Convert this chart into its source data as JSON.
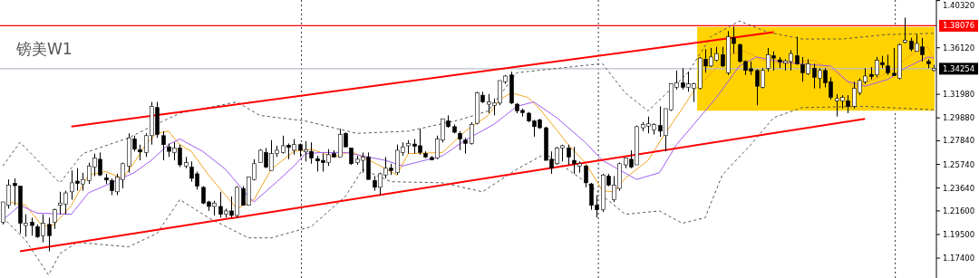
{
  "chart_data": {
    "type": "candlestick",
    "title": "镑美W1",
    "tick_labels": "y",
    "categories": [
      null,
      null,
      null,
      null,
      null,
      null,
      null,
      null,
      null,
      null,
      null,
      null,
      null,
      null,
      null,
      null,
      null,
      null,
      null,
      null,
      null,
      null,
      null,
      null,
      null,
      null,
      null,
      null,
      null,
      null,
      null,
      null,
      null,
      null,
      null,
      null,
      null,
      null,
      null,
      null,
      null,
      null,
      null,
      null,
      null,
      null,
      null,
      null,
      null,
      null,
      null,
      null,
      null,
      null,
      null,
      null,
      null,
      null,
      null,
      null,
      null,
      null,
      null,
      null,
      null,
      null,
      null,
      null,
      null,
      null,
      null,
      null,
      null,
      null,
      null,
      null,
      null,
      null,
      null,
      null,
      null,
      null,
      null,
      null,
      null,
      null,
      null,
      null,
      null,
      null,
      null,
      null,
      null,
      null,
      null,
      null,
      null,
      null,
      null,
      null,
      null,
      null,
      null,
      null,
      null,
      null,
      null,
      null,
      null,
      null,
      null,
      null,
      null,
      null,
      null,
      null,
      null,
      null,
      null,
      null,
      null,
      null,
      null,
      null,
      null,
      null,
      null,
      null,
      null,
      null,
      null,
      null,
      null,
      null,
      null,
      null,
      null,
      null,
      null,
      null,
      null,
      null,
      null,
      null,
      null,
      null,
      null,
      null,
      null,
      null,
      null,
      null,
      null,
      null,
      null,
      null,
      null,
      null,
      null,
      null,
      null,
      null,
      null,
      null
    ],
    "ohlc": [
      [
        1.206,
        1.224,
        1.204,
        1.224
      ],
      [
        1.221,
        1.244,
        1.218,
        1.239
      ],
      [
        1.24,
        1.245,
        1.221,
        1.239
      ],
      [
        1.238,
        1.238,
        1.196,
        1.205
      ],
      [
        1.203,
        1.213,
        1.193,
        1.205
      ],
      [
        1.206,
        1.21,
        1.194,
        1.203
      ],
      [
        1.202,
        1.204,
        1.192,
        1.193
      ],
      [
        1.194,
        1.213,
        1.188,
        1.205
      ],
      [
        1.204,
        1.21,
        1.18,
        1.194
      ],
      [
        1.206,
        1.218,
        1.2,
        1.217
      ],
      [
        1.221,
        1.233,
        1.213,
        1.223
      ],
      [
        1.222,
        1.234,
        1.213,
        1.232
      ],
      [
        1.233,
        1.252,
        1.226,
        1.241
      ],
      [
        1.242,
        1.254,
        1.234,
        1.241
      ],
      [
        1.24,
        1.25,
        1.234,
        1.244
      ],
      [
        1.243,
        1.259,
        1.24,
        1.256
      ],
      [
        1.255,
        1.267,
        1.247,
        1.263
      ],
      [
        1.262,
        1.268,
        1.247,
        1.248
      ],
      [
        1.245,
        1.249,
        1.24,
        1.244
      ],
      [
        1.243,
        1.245,
        1.23,
        1.234
      ],
      [
        1.233,
        1.249,
        1.23,
        1.246
      ],
      [
        1.244,
        1.259,
        1.236,
        1.258
      ],
      [
        1.256,
        1.285,
        1.25,
        1.281
      ],
      [
        1.28,
        1.283,
        1.269,
        1.271
      ],
      [
        1.27,
        1.275,
        1.261,
        1.269
      ],
      [
        1.268,
        1.285,
        1.264,
        1.283
      ],
      [
        1.283,
        1.313,
        1.275,
        1.309
      ],
      [
        1.308,
        1.313,
        1.281,
        1.284
      ],
      [
        1.283,
        1.287,
        1.261,
        1.275
      ],
      [
        1.273,
        1.276,
        1.264,
        1.269
      ],
      [
        1.268,
        1.277,
        1.261,
        1.272
      ],
      [
        1.272,
        1.275,
        1.255,
        1.257
      ],
      [
        1.256,
        1.264,
        1.254,
        1.259
      ],
      [
        1.255,
        1.26,
        1.242,
        1.245
      ],
      [
        1.249,
        1.251,
        1.235,
        1.238
      ],
      [
        1.237,
        1.238,
        1.222,
        1.223
      ],
      [
        1.224,
        1.225,
        1.216,
        1.22
      ],
      [
        1.22,
        1.225,
        1.212,
        1.223
      ],
      [
        1.22,
        1.233,
        1.21,
        1.213
      ],
      [
        1.213,
        1.218,
        1.21,
        1.216
      ],
      [
        1.216,
        1.229,
        1.21,
        1.212
      ],
      [
        1.212,
        1.238,
        1.21,
        1.237
      ],
      [
        1.236,
        1.238,
        1.221,
        1.221
      ],
      [
        1.221,
        1.246,
        1.221,
        1.246
      ],
      [
        1.244,
        1.262,
        1.243,
        1.258
      ],
      [
        1.259,
        1.271,
        1.259,
        1.27
      ],
      [
        1.268,
        1.272,
        1.254,
        1.255
      ],
      [
        1.252,
        1.279,
        1.252,
        1.267
      ],
      [
        1.267,
        1.274,
        1.264,
        1.27
      ],
      [
        1.268,
        1.283,
        1.267,
        1.274
      ],
      [
        1.274,
        1.276,
        1.262,
        1.273
      ],
      [
        1.27,
        1.28,
        1.266,
        1.275
      ],
      [
        1.275,
        1.276,
        1.264,
        1.27
      ],
      [
        1.269,
        1.278,
        1.26,
        1.27
      ],
      [
        1.269,
        1.277,
        1.258,
        1.263
      ],
      [
        1.262,
        1.265,
        1.251,
        1.261
      ],
      [
        1.261,
        1.267,
        1.251,
        1.259
      ],
      [
        1.259,
        1.271,
        1.256,
        1.266
      ],
      [
        1.267,
        1.27,
        1.264,
        1.264
      ],
      [
        1.264,
        1.289,
        1.264,
        1.284
      ],
      [
        1.285,
        1.286,
        1.273,
        1.273
      ],
      [
        1.272,
        1.272,
        1.257,
        1.258
      ],
      [
        1.259,
        1.265,
        1.257,
        1.262
      ],
      [
        1.261,
        1.268,
        1.25,
        1.264
      ],
      [
        1.264,
        1.268,
        1.244,
        1.244
      ],
      [
        1.243,
        1.247,
        1.234,
        1.237
      ],
      [
        1.237,
        1.25,
        1.23,
        1.249
      ],
      [
        1.248,
        1.264,
        1.245,
        1.254
      ],
      [
        1.254,
        1.258,
        1.248,
        1.252
      ],
      [
        1.25,
        1.275,
        1.248,
        1.27
      ],
      [
        1.268,
        1.277,
        1.265,
        1.273
      ],
      [
        1.274,
        1.279,
        1.267,
        1.276
      ],
      [
        1.275,
        1.28,
        1.267,
        1.274
      ],
      [
        1.274,
        1.289,
        1.266,
        1.268
      ],
      [
        1.267,
        1.269,
        1.263,
        1.264
      ],
      [
        1.263,
        1.265,
        1.261,
        1.262
      ],
      [
        1.263,
        1.283,
        1.262,
        1.28
      ],
      [
        1.279,
        1.298,
        1.277,
        1.298
      ],
      [
        1.296,
        1.301,
        1.29,
        1.291
      ],
      [
        1.291,
        1.293,
        1.285,
        1.286
      ],
      [
        1.285,
        1.287,
        1.27,
        1.28
      ],
      [
        1.279,
        1.281,
        1.267,
        1.276
      ],
      [
        1.276,
        1.295,
        1.275,
        1.293
      ],
      [
        1.294,
        1.322,
        1.293,
        1.321
      ],
      [
        1.319,
        1.322,
        1.312,
        1.313
      ],
      [
        1.312,
        1.32,
        1.303,
        1.312
      ],
      [
        1.311,
        1.316,
        1.301,
        1.311
      ],
      [
        1.312,
        1.332,
        1.31,
        1.332
      ],
      [
        1.331,
        1.337,
        1.329,
        1.336
      ],
      [
        1.337,
        1.34,
        1.311,
        1.312
      ],
      [
        1.311,
        1.312,
        1.303,
        1.305
      ],
      [
        1.305,
        1.307,
        1.3,
        1.304
      ],
      [
        1.303,
        1.304,
        1.295,
        1.296
      ],
      [
        1.296,
        1.297,
        1.282,
        1.291
      ],
      [
        1.297,
        1.298,
        1.289,
        1.29
      ],
      [
        1.29,
        1.291,
        1.261,
        1.261
      ],
      [
        1.262,
        1.269,
        1.249,
        1.254
      ],
      [
        1.258,
        1.273,
        1.257,
        1.272
      ],
      [
        1.272,
        1.275,
        1.26,
        1.274
      ],
      [
        1.272,
        1.275,
        1.257,
        1.264
      ],
      [
        1.261,
        1.273,
        1.249,
        1.258
      ],
      [
        1.256,
        1.26,
        1.25,
        1.258
      ],
      [
        1.256,
        1.257,
        1.237,
        1.241
      ],
      [
        1.24,
        1.241,
        1.217,
        1.221
      ],
      [
        1.221,
        1.23,
        1.21,
        1.217
      ],
      [
        1.217,
        1.249,
        1.215,
        1.248
      ],
      [
        1.247,
        1.249,
        1.238,
        1.239
      ],
      [
        1.226,
        1.247,
        1.224,
        1.239
      ],
      [
        1.236,
        1.259,
        1.234,
        1.258
      ],
      [
        1.257,
        1.263,
        1.254,
        1.263
      ],
      [
        1.262,
        1.27,
        1.254,
        1.255
      ],
      [
        1.257,
        1.292,
        1.257,
        1.291
      ],
      [
        1.29,
        1.295,
        1.287,
        1.293
      ],
      [
        1.292,
        1.3,
        1.285,
        1.293
      ],
      [
        1.288,
        1.294,
        1.284,
        1.293
      ],
      [
        1.292,
        1.309,
        1.282,
        1.287
      ],
      [
        1.283,
        1.307,
        1.269,
        1.307
      ],
      [
        1.306,
        1.329,
        1.305,
        1.329
      ],
      [
        1.326,
        1.341,
        1.324,
        1.33
      ],
      [
        1.33,
        1.343,
        1.324,
        1.326
      ],
      [
        1.326,
        1.34,
        1.322,
        1.329
      ],
      [
        1.325,
        1.33,
        1.313,
        1.329
      ],
      [
        1.325,
        1.353,
        1.324,
        1.352
      ],
      [
        1.351,
        1.36,
        1.339,
        1.345
      ],
      [
        1.345,
        1.361,
        1.344,
        1.353
      ],
      [
        1.35,
        1.362,
        1.349,
        1.356
      ],
      [
        1.355,
        1.362,
        1.344,
        1.345
      ],
      [
        1.339,
        1.376,
        1.337,
        1.371
      ],
      [
        1.37,
        1.38,
        1.356,
        1.365
      ],
      [
        1.364,
        1.365,
        1.348,
        1.349
      ],
      [
        1.349,
        1.35,
        1.337,
        1.341
      ],
      [
        1.342,
        1.349,
        1.337,
        1.341
      ],
      [
        1.341,
        1.342,
        1.31,
        1.327
      ],
      [
        1.326,
        1.343,
        1.325,
        1.341
      ],
      [
        1.343,
        1.361,
        1.34,
        1.355
      ],
      [
        1.354,
        1.358,
        1.341,
        1.352
      ],
      [
        1.35,
        1.353,
        1.343,
        1.349
      ],
      [
        1.348,
        1.351,
        1.341,
        1.349
      ],
      [
        1.349,
        1.359,
        1.341,
        1.356
      ],
      [
        1.354,
        1.371,
        1.346,
        1.347
      ],
      [
        1.346,
        1.353,
        1.331,
        1.339
      ],
      [
        1.338,
        1.351,
        1.337,
        1.347
      ],
      [
        1.343,
        1.347,
        1.325,
        1.335
      ],
      [
        1.334,
        1.343,
        1.325,
        1.341
      ],
      [
        1.341,
        1.343,
        1.326,
        1.33
      ],
      [
        1.331,
        1.335,
        1.315,
        1.317
      ],
      [
        1.314,
        1.32,
        1.3,
        1.316
      ],
      [
        1.314,
        1.319,
        1.307,
        1.317
      ],
      [
        1.314,
        1.319,
        1.303,
        1.309
      ],
      [
        1.309,
        1.331,
        1.307,
        1.325
      ],
      [
        1.321,
        1.334,
        1.319,
        1.332
      ],
      [
        1.331,
        1.343,
        1.329,
        1.336
      ],
      [
        1.337,
        1.344,
        1.333,
        1.336
      ],
      [
        1.337,
        1.353,
        1.335,
        1.35
      ],
      [
        1.348,
        1.354,
        1.343,
        1.346
      ],
      [
        1.345,
        1.355,
        1.337,
        1.339
      ],
      [
        1.338,
        1.361,
        1.336,
        1.337
      ],
      [
        1.334,
        1.365,
        1.333,
        1.364
      ],
      [
        1.366,
        1.388,
        1.365,
        1.368
      ],
      [
        1.367,
        1.37,
        1.358,
        1.36
      ],
      [
        1.358,
        1.373,
        1.358,
        1.365
      ],
      [
        1.362,
        1.37,
        1.349,
        1.355
      ],
      [
        1.349,
        1.351,
        1.343,
        1.347
      ],
      [
        1.341,
        1.346,
        1.34,
        1.343
      ]
    ],
    "series": [
      {
        "type": "line",
        "color": "#555555",
        "line_style": "dashed",
        "values": [
          1.256,
          null,
          null,
          1.277,
          null,
          null,
          null,
          null,
          null,
          null,
          1.241,
          null,
          null,
          null,
          1.267,
          null,
          null,
          null,
          null,
          null,
          null,
          null,
          1.281,
          null,
          null,
          null,
          1.291,
          null,
          null,
          null,
          null,
          1.303,
          null,
          null,
          null,
          null,
          null,
          null,
          null,
          null,
          null,
          1.313,
          null,
          null,
          null,
          1.301,
          null,
          null,
          null,
          null,
          null,
          null,
          null,
          1.296,
          null,
          null,
          null,
          null,
          null,
          null,
          null,
          null,
          1.285,
          null,
          null,
          null,
          null,
          null,
          null,
          null,
          null,
          1.287,
          null,
          null,
          null,
          null,
          null,
          null,
          null,
          null,
          1.297,
          null,
          null,
          null,
          null,
          1.305,
          null,
          null,
          null,
          null,
          1.339,
          null,
          null,
          null,
          null,
          null,
          null,
          null,
          null,
          null,
          null,
          1.345,
          null,
          null,
          null,
          1.347,
          null,
          null,
          null,
          1.321,
          null,
          null,
          null,
          1.305,
          null,
          null,
          null,
          null,
          null,
          null,
          1.339,
          null,
          null,
          null,
          1.371,
          null,
          null,
          null,
          null,
          1.385,
          null,
          null,
          null,
          null,
          1.375,
          null,
          null,
          null,
          null,
          null,
          1.369,
          null,
          null,
          null,
          null,
          null,
          null,
          1.369,
          null,
          null,
          null,
          null,
          null,
          null,
          null,
          1.373,
          null,
          null,
          null,
          null,
          null,
          null,
          null,
          1.374
        ]
      },
      {
        "type": "line",
        "color": "#555555",
        "line_style": "dashed",
        "values": [
          1.21,
          null,
          null,
          null,
          1.19,
          null,
          null,
          null,
          1.159,
          null,
          1.178,
          null,
          null,
          1.188,
          null,
          null,
          null,
          null,
          null,
          null,
          null,
          null,
          1.184,
          null,
          null,
          null,
          null,
          1.196,
          null,
          null,
          null,
          1.226,
          null,
          null,
          null,
          null,
          1.21,
          null,
          null,
          null,
          null,
          null,
          null,
          1.192,
          null,
          null,
          null,
          1.192,
          null,
          null,
          null,
          null,
          null,
          null,
          1.202,
          null,
          null,
          null,
          null,
          null,
          1.229,
          null,
          null,
          1.253,
          null,
          null,
          null,
          null,
          1.242,
          null,
          null,
          null,
          null,
          null,
          null,
          null,
          null,
          1.241,
          null,
          null,
          null,
          null,
          null,
          null,
          1.233,
          null,
          null,
          null,
          null,
          null,
          1.253,
          null,
          null,
          null,
          null,
          1.267,
          null,
          null,
          null,
          null,
          null,
          null,
          1.242,
          null,
          null,
          null,
          null,
          null,
          null,
          1.213,
          null,
          null,
          null,
          null,
          null,
          1.216,
          null,
          null,
          null,
          1.205,
          null,
          null,
          null,
          1.21,
          null,
          null,
          1.248,
          null,
          null,
          null,
          null,
          1.275,
          null,
          null,
          null,
          1.299,
          null,
          null,
          null,
          null,
          1.308,
          null,
          null,
          null,
          null,
          null,
          null,
          null,
          null,
          null,
          null,
          1.309,
          null,
          null,
          null,
          null,
          null,
          null,
          null,
          null,
          null,
          null,
          null,
          1.306
        ]
      },
      {
        "type": "line",
        "color": "#f5a623",
        "values": [
          null,
          1.224,
          null,
          null,
          1.221,
          null,
          null,
          1.202,
          null,
          1.204,
          null,
          null,
          1.221,
          null,
          null,
          1.248,
          null,
          null,
          1.251,
          null,
          null,
          1.245,
          null,
          1.259,
          null,
          1.275,
          null,
          1.285,
          null,
          1.287,
          null,
          1.275,
          null,
          1.269,
          null,
          null,
          1.248,
          null,
          null,
          null,
          null,
          1.218,
          null,
          null,
          1.226,
          null,
          null,
          1.253,
          null,
          null,
          null,
          1.269,
          null,
          null,
          1.271,
          null,
          null,
          null,
          1.264,
          null,
          null,
          1.269,
          null,
          null,
          null,
          1.259,
          null,
          null,
          null,
          1.248,
          null,
          1.267,
          null,
          null,
          null,
          null,
          null,
          1.268,
          null,
          null,
          null,
          1.287,
          null,
          null,
          null,
          1.301,
          null,
          1.315,
          null,
          1.321,
          null,
          null,
          1.317,
          null,
          1.307,
          null,
          null,
          1.288,
          null,
          1.275,
          null,
          null,
          1.259,
          null,
          null,
          1.234,
          null,
          1.233,
          null,
          1.245,
          null,
          null,
          null,
          1.261,
          null,
          null,
          1.285,
          null,
          null,
          1.307,
          null,
          1.323,
          null,
          null,
          1.338,
          null,
          null,
          1.355,
          null,
          null,
          1.358,
          null,
          null,
          1.35,
          null,
          null,
          1.347,
          null,
          null,
          null,
          null,
          null,
          1.35,
          null,
          null,
          null,
          1.339,
          null,
          null,
          1.326,
          null,
          null,
          null,
          1.334,
          null,
          null,
          1.342,
          null,
          null,
          1.355,
          null,
          null,
          1.362,
          1.351
        ]
      },
      {
        "type": "line",
        "color": "#a05cf0",
        "values": [
          1.208,
          null,
          null,
          1.221,
          null,
          null,
          1.214,
          null,
          null,
          null,
          null,
          null,
          1.213,
          null,
          null,
          1.232,
          null,
          null,
          null,
          1.241,
          null,
          null,
          null,
          1.25,
          null,
          null,
          1.261,
          null,
          null,
          1.275,
          null,
          1.28,
          null,
          null,
          null,
          1.269,
          null,
          null,
          null,
          1.253,
          null,
          null,
          null,
          1.229,
          1.224,
          null,
          null,
          null,
          1.242,
          null,
          null,
          1.256,
          null,
          1.267,
          null,
          null,
          1.268,
          null,
          null,
          null,
          1.268,
          null,
          null,
          null,
          null,
          null,
          null,
          1.261,
          null,
          null,
          1.256,
          null,
          null,
          null,
          null,
          null,
          null,
          1.265,
          null,
          null,
          null,
          1.279,
          null,
          null,
          null,
          null,
          1.293,
          null,
          null,
          null,
          1.309,
          null,
          null,
          1.313,
          null,
          null,
          null,
          1.299,
          null,
          null,
          null,
          null,
          1.277,
          null,
          null,
          1.261,
          null,
          null,
          null,
          null,
          null,
          1.244,
          null,
          null,
          null,
          1.25,
          null,
          null,
          1.275,
          null,
          null,
          null,
          1.299,
          null,
          null,
          1.317,
          null,
          null,
          null,
          1.345,
          null,
          null,
          1.353,
          null,
          null,
          null,
          1.349,
          null,
          null,
          1.347,
          null,
          null,
          null,
          null,
          null,
          1.345,
          null,
          null,
          1.331,
          null,
          null,
          1.327,
          null,
          null,
          null,
          1.333,
          null,
          null,
          1.343,
          null,
          null,
          null,
          1.353,
          1.352
        ]
      },
      {
        "type": "line",
        "color": "#ff0000",
        "values": [
          null,
          null,
          null,
          null,
          null,
          null,
          null,
          null,
          null,
          null,
          null,
          null,
          1.291,
          null,
          null,
          null,
          null,
          null,
          null,
          null,
          null,
          null,
          null,
          null,
          null,
          null,
          null,
          null,
          null,
          null,
          null,
          null,
          null,
          null,
          null,
          null,
          null,
          null,
          null,
          null,
          null,
          null,
          null,
          null,
          null,
          null,
          null,
          null,
          null,
          null,
          null,
          null,
          null,
          null,
          null,
          null,
          null,
          null,
          null,
          null,
          null,
          null,
          null,
          null,
          null,
          null,
          null,
          null,
          null,
          null,
          null,
          null,
          null,
          null,
          null,
          null,
          null,
          null,
          null,
          null,
          null,
          null,
          null,
          null,
          null,
          null,
          null,
          null,
          null,
          null,
          null,
          null,
          null,
          null,
          null,
          null,
          null,
          null,
          null,
          null,
          null,
          null,
          null,
          null,
          null,
          null,
          null,
          null,
          null,
          null,
          null,
          null,
          null,
          null,
          null,
          null,
          null,
          null,
          null,
          null,
          null,
          null,
          null,
          null,
          null,
          null,
          null,
          null,
          null,
          null,
          null,
          null,
          null,
          null,
          null,
          1.375,
          null,
          null,
          null,
          null,
          null,
          null,
          null,
          null,
          null,
          null,
          null,
          null,
          null,
          null,
          null,
          null,
          null,
          null,
          null,
          null,
          null,
          null,
          null,
          null,
          null,
          null,
          null,
          null
        ]
      },
      {
        "type": "line",
        "color": "#ff0000",
        "values": [
          null,
          null,
          null,
          1.18,
          null,
          null,
          null,
          null,
          null,
          null,
          null,
          null,
          null,
          null,
          null,
          null,
          null,
          null,
          null,
          null,
          null,
          null,
          null,
          null,
          null,
          null,
          null,
          null,
          null,
          null,
          null,
          null,
          null,
          null,
          null,
          null,
          null,
          null,
          null,
          null,
          null,
          null,
          null,
          null,
          null,
          null,
          null,
          null,
          null,
          null,
          null,
          null,
          null,
          null,
          null,
          null,
          null,
          null,
          null,
          null,
          null,
          null,
          null,
          null,
          null,
          null,
          null,
          null,
          null,
          null,
          null,
          null,
          null,
          null,
          null,
          null,
          null,
          null,
          null,
          null,
          null,
          null,
          null,
          null,
          null,
          null,
          null,
          null,
          null,
          null,
          null,
          null,
          null,
          null,
          null,
          null,
          null,
          null,
          null,
          null,
          null,
          null,
          null,
          null,
          null,
          null,
          null,
          null,
          null,
          null,
          null,
          null,
          null,
          null,
          null,
          null,
          null,
          null,
          null,
          null,
          null,
          null,
          null,
          null,
          null,
          null,
          null,
          null,
          null,
          null,
          null,
          null,
          null,
          null,
          null,
          null,
          null,
          null,
          null,
          null,
          null,
          null,
          null,
          null,
          null,
          null,
          null,
          null,
          null,
          null,
          null,
          1.298,
          null,
          null,
          null,
          null,
          null,
          null,
          null,
          null,
          null,
          null,
          null,
          null
        ]
      }
    ],
    "ref_lines": [
      {
        "axis": "y",
        "value": 1.38076,
        "label": "1.38076",
        "color": "#ff0000"
      },
      {
        "axis": "y",
        "value": 1.34254,
        "label": "1.34254",
        "color": "#b8c0cc"
      }
    ],
    "ylim": [
      1.1563,
      1.4037
    ],
    "yticks": [
      {
        "value": 1.174,
        "label": "1.17400"
      },
      {
        "value": 1.195,
        "label": "1.19500"
      },
      {
        "value": 1.216,
        "label": "1.21600"
      },
      {
        "value": 1.2364,
        "label": "1.23640"
      },
      {
        "value": 1.2574,
        "label": "1.25740"
      },
      {
        "value": 1.2784,
        "label": "1.27840"
      },
      {
        "value": 1.2988,
        "label": "1.29880"
      },
      {
        "value": 1.3198,
        "label": "1.31980"
      },
      {
        "value": 1.3612,
        "label": "1.36120"
      },
      {
        "value": 1.4032,
        "label": "1.40320"
      }
    ]
  }
}
